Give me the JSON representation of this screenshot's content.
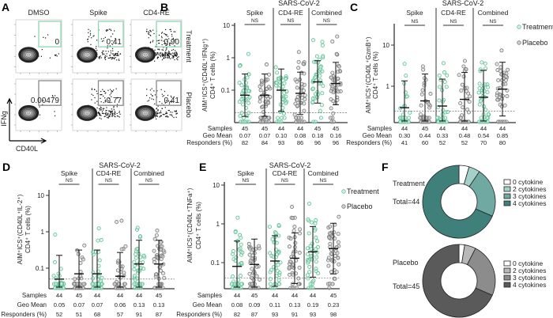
{
  "colors": {
    "treatment": "#5cbf94",
    "treatment_fill": "#d6f0e3",
    "placebo": "#7a7a7a",
    "placebo_fill": "#d0d0d0"
  },
  "panel_a": {
    "label": "A",
    "columns": [
      "DMSO",
      "Spike",
      "CD4-RE"
    ],
    "rows": [
      "Treatment",
      "Placebo"
    ],
    "gate_values": [
      [
        "0",
        "0.41",
        "0.90"
      ],
      [
        "0.00479",
        "0.77",
        "0.41"
      ]
    ],
    "y_axis": "IFNg",
    "x_axis": "CD40L"
  },
  "chart_data": [
    {
      "type": "scatter",
      "label": "B",
      "header": "SARS-CoV-2",
      "yscale": "log",
      "ylabel": [
        "AIM⁺ICS⁺(CD40L⁺IFNg⁺)",
        "CD4⁺ T cells (%)"
      ],
      "yticks": [
        "10",
        "1",
        "0.1"
      ],
      "threshold": 0.02,
      "grid": false,
      "groups": [
        {
          "name": "Spike",
          "sig": "NS"
        },
        {
          "name": "CD4-RE",
          "sig": "NS"
        },
        {
          "name": "Combined",
          "sig": "NS"
        }
      ],
      "row_labels": [
        "Samples",
        "Geo Mean",
        "Responders (%)"
      ],
      "columns": [
        {
          "arm": "Treatment",
          "samples": "45",
          "geo_mean": "0.07",
          "responders": "82"
        },
        {
          "arm": "Placebo",
          "samples": "45",
          "geo_mean": "0.07",
          "responders": "84"
        },
        {
          "arm": "Treatment",
          "samples": "44",
          "geo_mean": "0.10",
          "responders": "93"
        },
        {
          "arm": "Placebo",
          "samples": "44",
          "geo_mean": "0.08",
          "responders": "86"
        },
        {
          "arm": "Treatment",
          "samples": "45",
          "geo_mean": "0.18",
          "responders": "96"
        },
        {
          "arm": "Placebo",
          "samples": "45",
          "geo_mean": "0.16",
          "responders": "96"
        }
      ]
    },
    {
      "type": "scatter",
      "label": "C",
      "header": "SARS-CoV-2",
      "yscale": "log",
      "ylabel": [
        "AIM⁺ICS⁺(CD40L⁺GzmB⁺)",
        "CD4⁺ T cells (%)"
      ],
      "yticks": [
        "10",
        "1"
      ],
      "threshold": 0.25,
      "grid": false,
      "legend": [
        "Treatment",
        "Placebo"
      ],
      "legend_position": "right",
      "groups": [
        {
          "name": "Spike",
          "sig": "NS"
        },
        {
          "name": "CD4-RE",
          "sig": "NS"
        },
        {
          "name": "Combined",
          "sig": "NS"
        }
      ],
      "row_labels": [
        "Samples",
        "Geo Mean",
        "Responders (%)"
      ],
      "columns": [
        {
          "arm": "Treatment",
          "samples": "44",
          "geo_mean": "0.30",
          "responders": "41"
        },
        {
          "arm": "Placebo",
          "samples": "45",
          "geo_mean": "0.44",
          "responders": "60"
        },
        {
          "arm": "Treatment",
          "samples": "44",
          "geo_mean": "0.33",
          "responders": "52"
        },
        {
          "arm": "Placebo",
          "samples": "44",
          "geo_mean": "0.48",
          "responders": "52"
        },
        {
          "arm": "Treatment",
          "samples": "44",
          "geo_mean": "0.54",
          "responders": "70"
        },
        {
          "arm": "Placebo",
          "samples": "44",
          "geo_mean": "0.85",
          "responders": "80"
        }
      ]
    },
    {
      "type": "scatter",
      "label": "D",
      "header": "SARS-CoV-2",
      "yscale": "log",
      "ylabel": [
        "AIM⁺ICS⁺(CD40L⁺IL-2⁺)",
        "CD4⁺ T cells (%)"
      ],
      "yticks": [
        "10",
        "1",
        "0.1"
      ],
      "threshold": 0.05,
      "grid": false,
      "groups": [
        {
          "name": "Spike",
          "sig": "NS"
        },
        {
          "name": "CD4-RE",
          "sig": "NS"
        },
        {
          "name": "Combined",
          "sig": "NS"
        }
      ],
      "row_labels": [
        "Samples",
        "Geo Mean",
        "Responders (%)"
      ],
      "columns": [
        {
          "arm": "Treatment",
          "samples": "44",
          "geo_mean": "0.05",
          "responders": "52"
        },
        {
          "arm": "Placebo",
          "samples": "45",
          "geo_mean": "0.07",
          "responders": "51"
        },
        {
          "arm": "Treatment",
          "samples": "44",
          "geo_mean": "0.07",
          "responders": "68"
        },
        {
          "arm": "Placebo",
          "samples": "44",
          "geo_mean": "0.06",
          "responders": "57"
        },
        {
          "arm": "Treatment",
          "samples": "44",
          "geo_mean": "0.13",
          "responders": "91"
        },
        {
          "arm": "Placebo",
          "samples": "45",
          "geo_mean": "0.13",
          "responders": "87"
        }
      ]
    },
    {
      "type": "scatter",
      "label": "E",
      "header": "SARS-CoV-2",
      "yscale": "log",
      "ylabel": [
        "AIM⁺ICS⁺(CD40L⁺TNFa⁺)",
        "CD4⁺ T cells (%)"
      ],
      "yticks": [
        "10",
        "1",
        "0.1"
      ],
      "threshold": 0.04,
      "grid": false,
      "legend": [
        "Treatment",
        "Placebo"
      ],
      "legend_position": "right",
      "groups": [
        {
          "name": "Spike",
          "sig": "NS"
        },
        {
          "name": "CD4-RE",
          "sig": "NS"
        },
        {
          "name": "Combined",
          "sig": "NS"
        }
      ],
      "row_labels": [
        "Samples",
        "Geo Mean",
        "Responders (%)"
      ],
      "columns": [
        {
          "arm": "Treatment",
          "samples": "44",
          "geo_mean": "0.08",
          "responders": "82"
        },
        {
          "arm": "Placebo",
          "samples": "45",
          "geo_mean": "0.09",
          "responders": "87"
        },
        {
          "arm": "Treatment",
          "samples": "44",
          "geo_mean": "0.11",
          "responders": "93"
        },
        {
          "arm": "Placebo",
          "samples": "44",
          "geo_mean": "0.13",
          "responders": "91"
        },
        {
          "arm": "Treatment",
          "samples": "44",
          "geo_mean": "0.19",
          "responders": "93"
        },
        {
          "arm": "Placebo",
          "samples": "45",
          "geo_mean": "0.23",
          "responders": "98"
        }
      ]
    },
    {
      "type": "pie",
      "label": "F",
      "donut": true,
      "charts": [
        {
          "name": "Treatment",
          "total": "Total=44",
          "categories": [
            "0 cytokine",
            "2 cytokines",
            "3 cytokines",
            "4 cytokines"
          ],
          "values": [
            4.5,
            5,
            22,
            68.5
          ],
          "colors": [
            "#ffffff",
            "#a3d0c8",
            "#6fa9a2",
            "#3f807b"
          ]
        },
        {
          "name": "Placebo",
          "total": "Total=45",
          "categories": [
            "0 cytokine",
            "2 cytokines",
            "3 cytokines",
            "4 cytokines"
          ],
          "values": [
            2.5,
            5,
            24,
            68.5
          ],
          "colors": [
            "#ffffff",
            "#b8b8b8",
            "#8c8c8c",
            "#5a5a5a"
          ]
        }
      ]
    }
  ]
}
